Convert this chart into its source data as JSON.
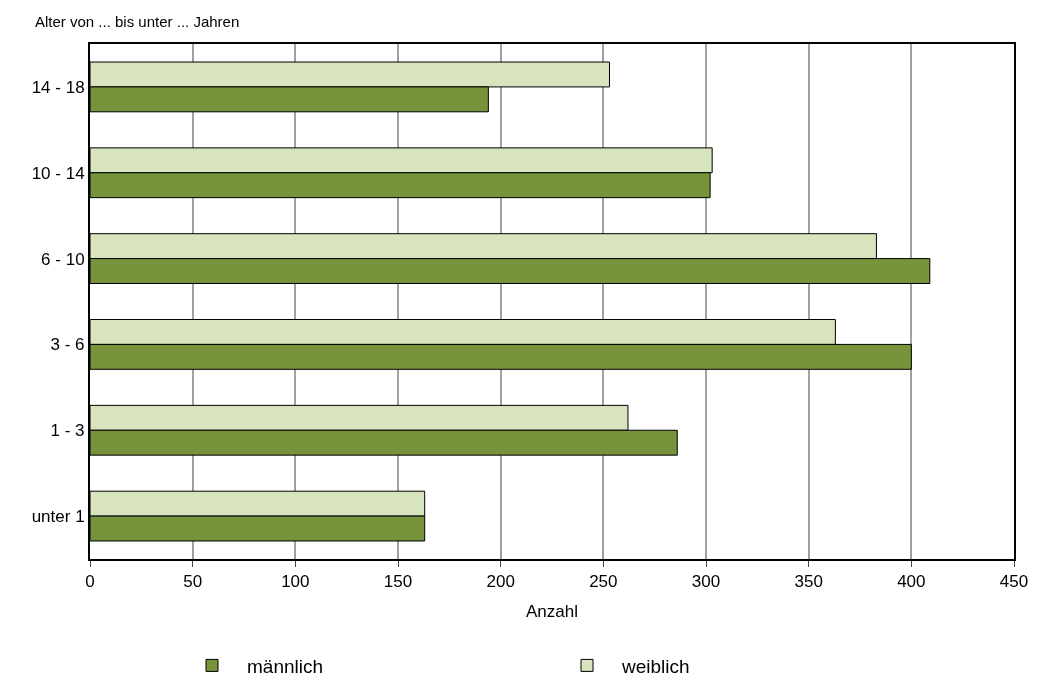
{
  "chart_data": {
    "type": "bar",
    "orientation": "horizontal",
    "ylabel": "Alter von ... bis unter ... Jahren",
    "xlabel": "Anzahl",
    "categories": [
      "14 - 18",
      "10 - 14",
      "6 - 10",
      "3 - 6",
      "1 - 3",
      "unter 1"
    ],
    "series": [
      {
        "name": "männlich",
        "color": "#77933c",
        "values": [
          194,
          302,
          409,
          400,
          286,
          163
        ]
      },
      {
        "name": "weiblich",
        "color": "#d7e4bd",
        "values": [
          253,
          303,
          383,
          363,
          262,
          163
        ]
      }
    ],
    "xlim": [
      0,
      450
    ],
    "xticks": [
      0,
      50,
      100,
      150,
      200,
      250,
      300,
      350,
      400,
      450
    ],
    "grid": "x",
    "legend": "bottom"
  }
}
